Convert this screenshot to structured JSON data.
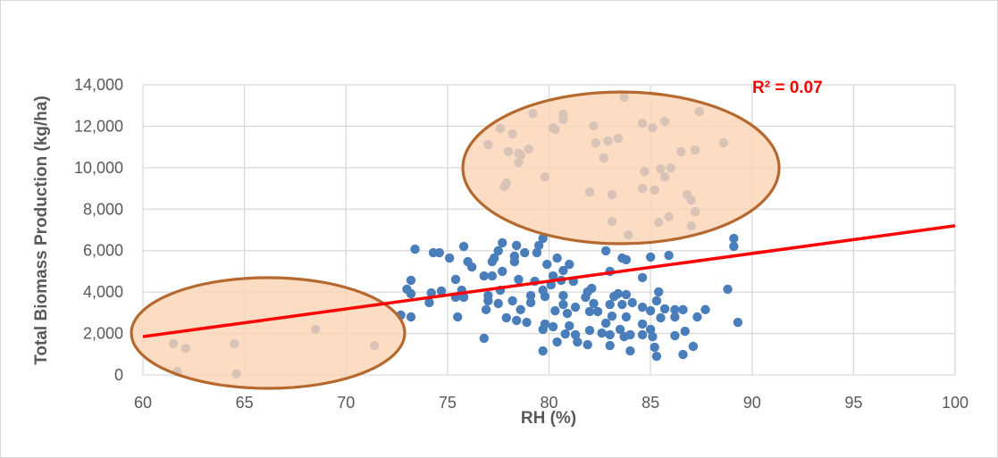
{
  "chart_data": {
    "type": "scatter",
    "title": "",
    "xlabel": "RH (%)",
    "ylabel": "Total Biomass Production (kg/ha)",
    "xlim": [
      60,
      100
    ],
    "ylim": [
      0,
      14000
    ],
    "x_ticks": [
      "60",
      "65",
      "70",
      "75",
      "80",
      "85",
      "90",
      "95",
      "100"
    ],
    "y_ticks": [
      "0",
      "2,000",
      "4,000",
      "6,000",
      "8,000",
      "10,000",
      "12,000",
      "14,000"
    ],
    "grid": true,
    "legend": "none",
    "colors": {
      "points": "#4a7ebb",
      "trendline": "#ff0000",
      "highlight_fill": "#fbd5b5",
      "highlight_stroke": "#b5692f"
    },
    "trendline": {
      "type": "linear",
      "points": [
        [
          60,
          1850
        ],
        [
          100,
          7200
        ]
      ],
      "label": "R² = 0.07"
    },
    "highlight_ellipses": 2,
    "points": [
      [
        61.5,
        1510
      ],
      [
        62.1,
        1290
      ],
      [
        61.7,
        170
      ],
      [
        64.5,
        1510
      ],
      [
        64.6,
        50
      ],
      [
        68.5,
        2200
      ],
      [
        71.4,
        1420
      ],
      [
        73.4,
        6070
      ],
      [
        74.3,
        5900
      ],
      [
        74.6,
        5900
      ],
      [
        75.1,
        5640
      ],
      [
        75.8,
        6200
      ],
      [
        76.0,
        5470
      ],
      [
        76.2,
        5210
      ],
      [
        77.7,
        6380
      ],
      [
        77.5,
        5990
      ],
      [
        77.3,
        5640
      ],
      [
        77.2,
        5470
      ],
      [
        78.4,
        6250
      ],
      [
        78.8,
        5900
      ],
      [
        78.3,
        5730
      ],
      [
        78.3,
        5470
      ],
      [
        79.5,
        6250
      ],
      [
        79.4,
        5900
      ],
      [
        79.7,
        6590
      ],
      [
        80.4,
        5640
      ],
      [
        79.9,
        5340
      ],
      [
        81.0,
        5340
      ],
      [
        80.7,
        5040
      ],
      [
        82.8,
        5990
      ],
      [
        83.6,
        5640
      ],
      [
        83.8,
        5560
      ],
      [
        85.0,
        5690
      ],
      [
        85.9,
        5770
      ],
      [
        89.1,
        6590
      ],
      [
        89.1,
        6200
      ],
      [
        83.0,
        5000
      ],
      [
        84.6,
        4700
      ],
      [
        73.2,
        4570
      ],
      [
        73.0,
        4140
      ],
      [
        73.2,
        3920
      ],
      [
        74.2,
        3960
      ],
      [
        74.7,
        4050
      ],
      [
        75.4,
        4610
      ],
      [
        75.7,
        4090
      ],
      [
        75.4,
        3750
      ],
      [
        75.8,
        3750
      ],
      [
        74.1,
        3490
      ],
      [
        72.7,
        2890
      ],
      [
        73.2,
        2800
      ],
      [
        75.5,
        2800
      ],
      [
        76.8,
        4780
      ],
      [
        77.2,
        4780
      ],
      [
        77.7,
        5000
      ],
      [
        78.5,
        4610
      ],
      [
        79.3,
        4520
      ],
      [
        80.2,
        4780
      ],
      [
        80.6,
        4570
      ],
      [
        81.2,
        4520
      ],
      [
        77.0,
        3830
      ],
      [
        77.0,
        3580
      ],
      [
        77.5,
        3450
      ],
      [
        76.9,
        3150
      ],
      [
        77.6,
        4090
      ],
      [
        78.2,
        3580
      ],
      [
        77.9,
        2760
      ],
      [
        78.4,
        2630
      ],
      [
        78.9,
        2540
      ],
      [
        78.6,
        3150
      ],
      [
        79.1,
        3490
      ],
      [
        79.1,
        3830
      ],
      [
        79.7,
        4090
      ],
      [
        79.8,
        3790
      ],
      [
        80.1,
        4350
      ],
      [
        80.3,
        3100
      ],
      [
        80.7,
        3830
      ],
      [
        80.7,
        3400
      ],
      [
        80.9,
        2970
      ],
      [
        81.3,
        3270
      ],
      [
        81.8,
        3750
      ],
      [
        82.1,
        4180
      ],
      [
        82.2,
        3450
      ],
      [
        82.0,
        3060
      ],
      [
        82.4,
        3060
      ],
      [
        81.9,
        4010
      ],
      [
        83.2,
        3790
      ],
      [
        83.4,
        3920
      ],
      [
        83.8,
        3880
      ],
      [
        83.0,
        3400
      ],
      [
        83.6,
        3400
      ],
      [
        84.1,
        3490
      ],
      [
        83.1,
        2840
      ],
      [
        83.8,
        2800
      ],
      [
        84.6,
        3270
      ],
      [
        85.0,
        3100
      ],
      [
        85.3,
        3580
      ],
      [
        85.4,
        4010
      ],
      [
        85.5,
        2760
      ],
      [
        85.7,
        3190
      ],
      [
        86.2,
        3150
      ],
      [
        86.6,
        3150
      ],
      [
        86.2,
        2800
      ],
      [
        87.3,
        2800
      ],
      [
        87.7,
        3150
      ],
      [
        88.8,
        4140
      ],
      [
        89.3,
        2540
      ],
      [
        79.8,
        2460
      ],
      [
        80.2,
        2330
      ],
      [
        79.7,
        2200
      ],
      [
        81.0,
        2370
      ],
      [
        80.8,
        1980
      ],
      [
        81.3,
        1940
      ],
      [
        81.4,
        1590
      ],
      [
        81.9,
        1460
      ],
      [
        80.4,
        1590
      ],
      [
        79.7,
        1160
      ],
      [
        76.8,
        1770
      ],
      [
        82.0,
        2150
      ],
      [
        82.6,
        2020
      ],
      [
        82.8,
        2500
      ],
      [
        83.0,
        1940
      ],
      [
        83.5,
        2200
      ],
      [
        84.0,
        1940
      ],
      [
        83.7,
        1850
      ],
      [
        83.0,
        1420
      ],
      [
        84.0,
        1160
      ],
      [
        84.6,
        1940
      ],
      [
        84.6,
        2460
      ],
      [
        85.0,
        2200
      ],
      [
        85.1,
        1850
      ],
      [
        85.2,
        1340
      ],
      [
        85.3,
        900
      ],
      [
        86.2,
        1900
      ],
      [
        86.7,
        2110
      ],
      [
        87.1,
        1380
      ],
      [
        86.6,
        990
      ],
      [
        77.0,
        11110
      ],
      [
        77.6,
        11890
      ],
      [
        78.2,
        11630
      ],
      [
        78.0,
        10770
      ],
      [
        78.5,
        10250
      ],
      [
        78.6,
        10600
      ],
      [
        79.0,
        10900
      ],
      [
        79.2,
        12620
      ],
      [
        79.8,
        9560
      ],
      [
        80.3,
        11850
      ],
      [
        80.7,
        12580
      ],
      [
        80.7,
        12320
      ],
      [
        82.2,
        12020
      ],
      [
        82.3,
        11200
      ],
      [
        82.7,
        10470
      ],
      [
        82.9,
        11290
      ],
      [
        83.4,
        11420
      ],
      [
        83.7,
        13400
      ],
      [
        84.6,
        12150
      ],
      [
        85.1,
        11930
      ],
      [
        85.7,
        12230
      ],
      [
        87.4,
        12710
      ],
      [
        88.6,
        11200
      ],
      [
        86.5,
        10770
      ],
      [
        87.2,
        10860
      ],
      [
        86.0,
        9990
      ],
      [
        85.5,
        9950
      ],
      [
        84.7,
        9820
      ],
      [
        84.6,
        9000
      ],
      [
        85.2,
        8920
      ],
      [
        85.7,
        9560
      ],
      [
        86.8,
        8700
      ],
      [
        87.0,
        8440
      ],
      [
        87.2,
        7880
      ],
      [
        87.0,
        7190
      ],
      [
        85.9,
        7630
      ],
      [
        85.4,
        7370
      ],
      [
        83.9,
        6760
      ],
      [
        83.1,
        7410
      ],
      [
        83.1,
        8700
      ],
      [
        82.0,
        8830
      ],
      [
        77.9,
        9260
      ],
      [
        77.8,
        9090
      ],
      [
        78.5,
        10690
      ],
      [
        80.2,
        11930
      ]
    ]
  }
}
